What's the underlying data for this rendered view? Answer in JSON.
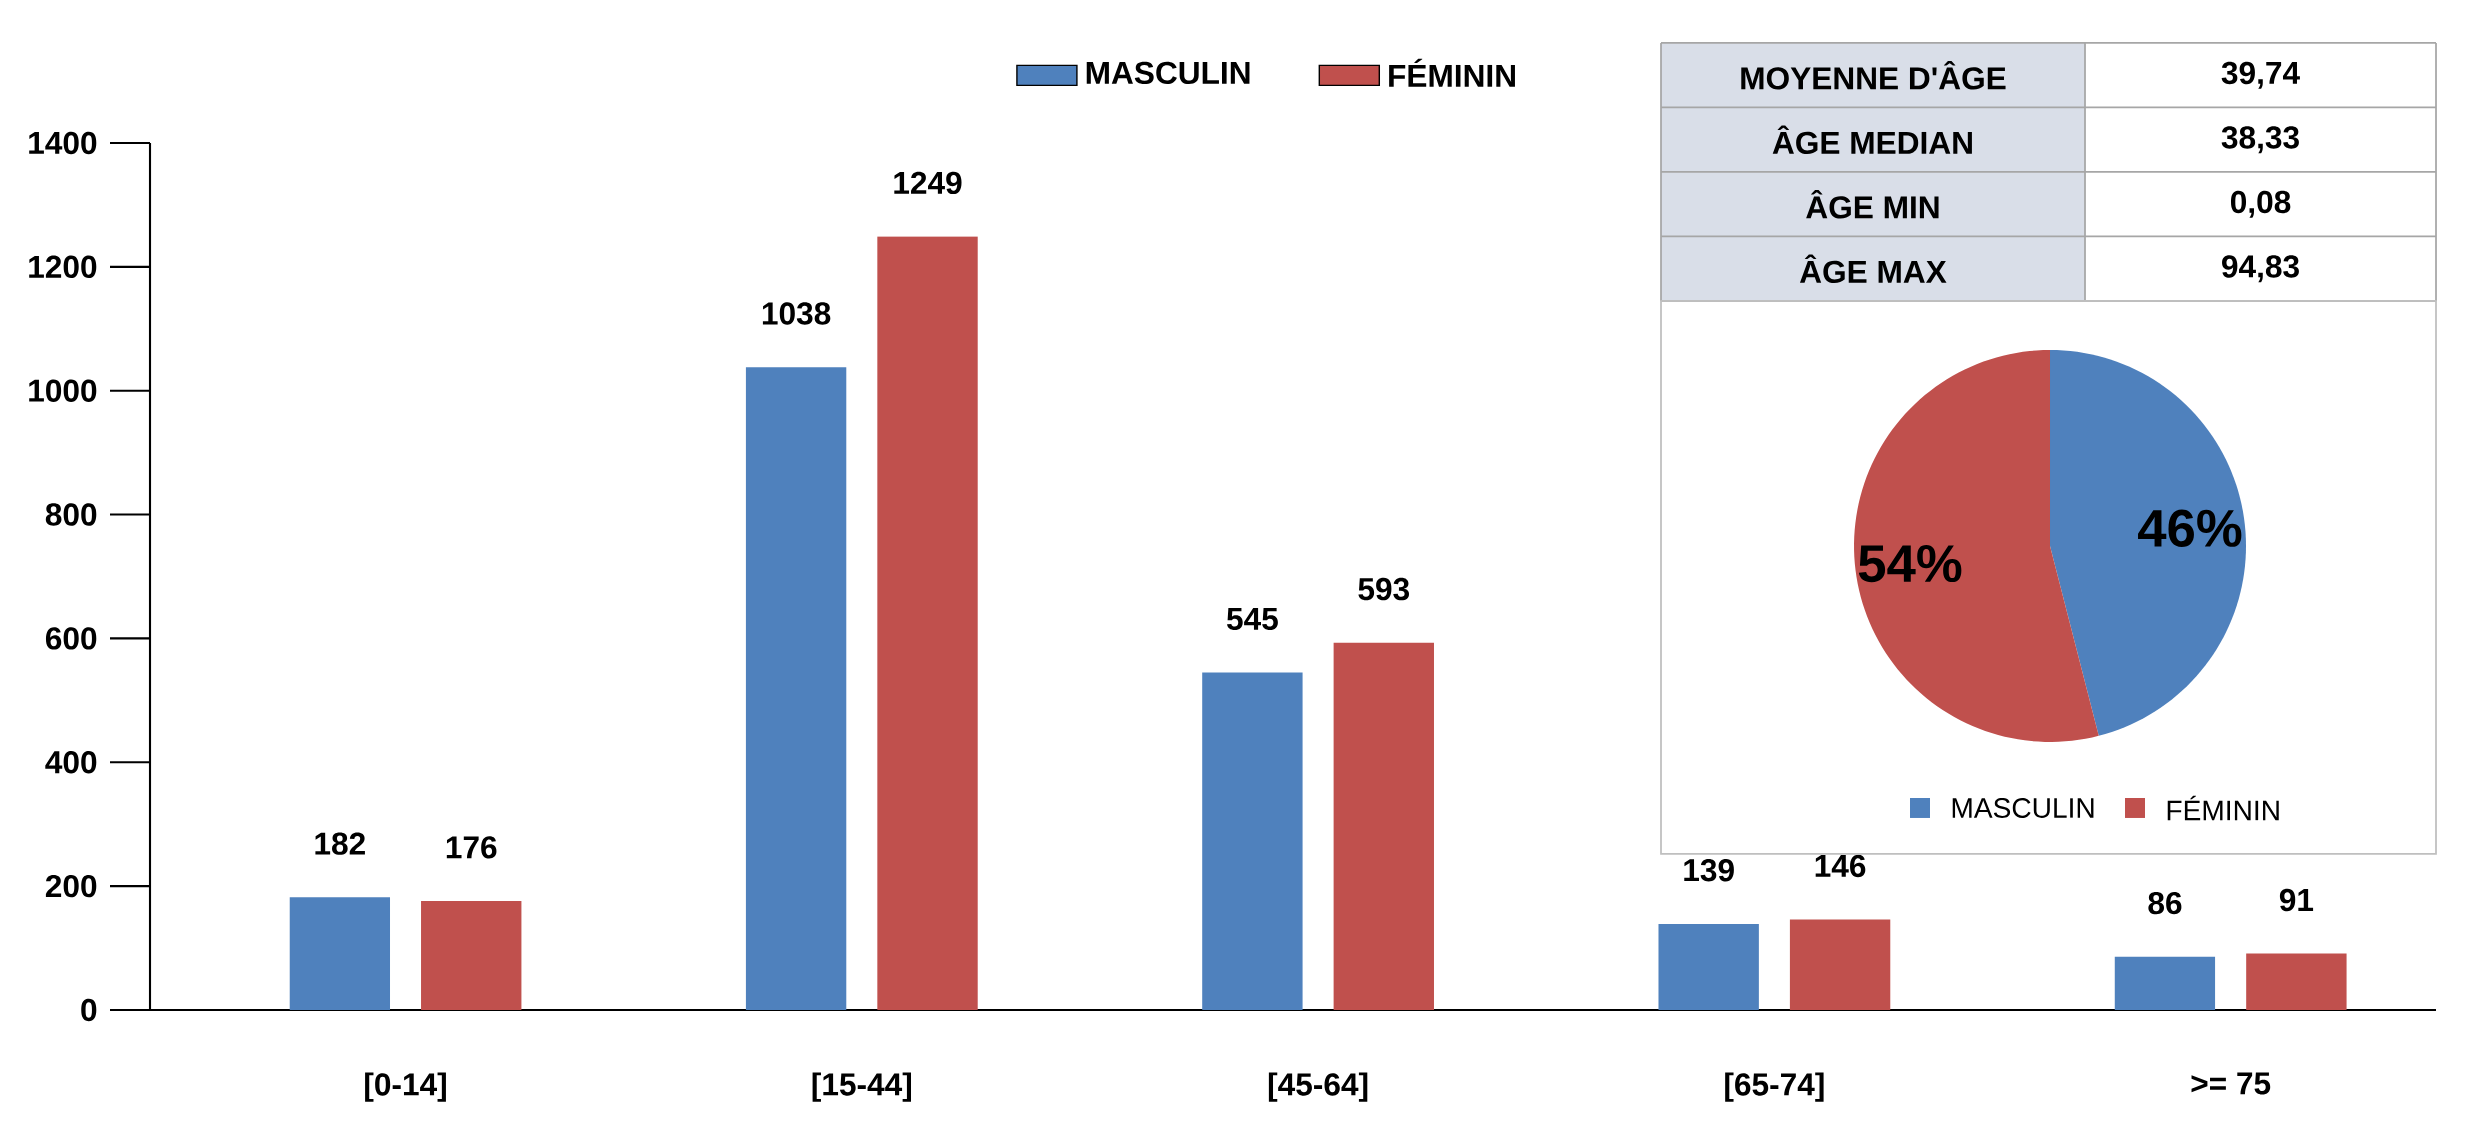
{
  "chart_data": [
    {
      "type": "bar",
      "categories": [
        "[0-14]",
        "[15-44]",
        "[45-64]",
        "[65-74]",
        ">=  75"
      ],
      "series": [
        {
          "name": "MASCULIN",
          "color": "#4f81bd",
          "values": [
            182,
            1038,
            545,
            139,
            86
          ]
        },
        {
          "name": "FÉMININ",
          "color": "#c0504d",
          "values": [
            176,
            1249,
            593,
            146,
            91
          ]
        }
      ],
      "ylim": [
        0,
        1400
      ],
      "yticks": [
        0,
        200,
        400,
        600,
        800,
        1000,
        1200,
        1400
      ],
      "data_labels": true,
      "legend": "top"
    },
    {
      "type": "other",
      "annotations": [
        "MOYENNE D'ÂGE",
        "39,74",
        "ÂGE MEDIAN",
        "38,33",
        "ÂGE MIN",
        "0,08",
        "ÂGE MAX",
        "94,83"
      ]
    },
    {
      "type": "pie",
      "categories": [
        "MASCULIN",
        "FÉMININ"
      ],
      "values": [
        46,
        54
      ],
      "colors": [
        "#4f81bd",
        "#c0504d"
      ],
      "value_labels": [
        "46%",
        "54%"
      ],
      "legend": "bottom"
    }
  ]
}
